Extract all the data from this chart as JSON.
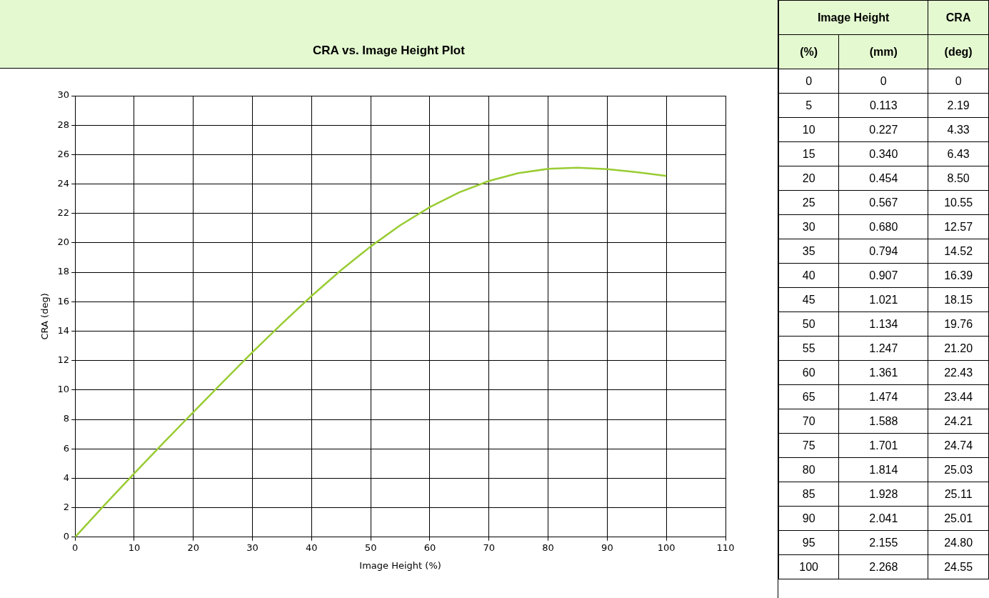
{
  "chart_data": [
    {
      "type": "line",
      "title": "CRA vs. Image Height Plot",
      "xlabel": "Image Height (%)",
      "ylabel": "CRA (deg)",
      "x": [
        0,
        5,
        10,
        15,
        20,
        25,
        30,
        35,
        40,
        45,
        50,
        55,
        60,
        65,
        70,
        75,
        80,
        85,
        90,
        95,
        100
      ],
      "series": [
        {
          "color": "#99cc33",
          "values": [
            0,
            2.19,
            4.33,
            6.43,
            8.5,
            10.55,
            12.57,
            14.52,
            16.39,
            18.15,
            19.76,
            21.2,
            22.43,
            23.44,
            24.21,
            24.74,
            25.03,
            25.11,
            25.01,
            24.8,
            24.55
          ]
        }
      ],
      "xlim": [
        0,
        110
      ],
      "xticks": [
        0,
        10,
        20,
        30,
        40,
        50,
        60,
        70,
        80,
        90,
        100,
        110
      ],
      "ylim": [
        0,
        30
      ],
      "yticks": [
        0,
        2,
        4,
        6,
        8,
        10,
        12,
        14,
        16,
        18,
        20,
        22,
        24,
        26,
        28,
        30
      ],
      "grid": true,
      "legend": false,
      "marker": "none",
      "line_style": "solid"
    },
    {
      "type": "heatmap",
      "annotations": [
        "Image Height",
        "CRA",
        "(%)"
      ],
      "categories": [
        "(mm)",
        "(deg)"
      ],
      "y_categories": [
        "0",
        "5",
        "10",
        "15",
        "20",
        "25",
        "30",
        "35",
        "40",
        "45",
        "50",
        "55",
        "60",
        "65",
        "70",
        "75",
        "80",
        "85",
        "90",
        "95",
        "100"
      ],
      "cells": [
        [
          0,
          0
        ],
        [
          0.113,
          2.19
        ],
        [
          0.227,
          4.33
        ],
        [
          0.34,
          6.43
        ],
        [
          0.454,
          8.5
        ],
        [
          0.567,
          10.55
        ],
        [
          0.68,
          12.57
        ],
        [
          0.794,
          14.52
        ],
        [
          0.907,
          16.39
        ],
        [
          1.021,
          18.15
        ],
        [
          1.134,
          19.76
        ],
        [
          1.247,
          21.2
        ],
        [
          1.361,
          22.43
        ],
        [
          1.474,
          23.44
        ],
        [
          1.588,
          24.21
        ],
        [
          1.701,
          24.74
        ],
        [
          1.814,
          25.03
        ],
        [
          1.928,
          25.11
        ],
        [
          2.041,
          25.01
        ],
        [
          2.155,
          24.8
        ],
        [
          2.268,
          24.55
        ]
      ],
      "cell_labels": [
        [
          "0",
          "0"
        ],
        [
          "0.113",
          "2.19"
        ],
        [
          "0.227",
          "4.33"
        ],
        [
          "0.340",
          "6.43"
        ],
        [
          "0.454",
          "8.50"
        ],
        [
          "0.567",
          "10.55"
        ],
        [
          "0.680",
          "12.57"
        ],
        [
          "0.794",
          "14.52"
        ],
        [
          "0.907",
          "16.39"
        ],
        [
          "1.021",
          "18.15"
        ],
        [
          "1.134",
          "19.76"
        ],
        [
          "1.247",
          "21.20"
        ],
        [
          "1.361",
          "22.43"
        ],
        [
          "1.474",
          "23.44"
        ],
        [
          "1.588",
          "24.21"
        ],
        [
          "1.701",
          "24.74"
        ],
        [
          "1.814",
          "25.03"
        ],
        [
          "1.928",
          "25.11"
        ],
        [
          "2.041",
          "25.01"
        ],
        [
          "2.155",
          "24.80"
        ],
        [
          "2.268",
          "24.55"
        ]
      ]
    }
  ]
}
